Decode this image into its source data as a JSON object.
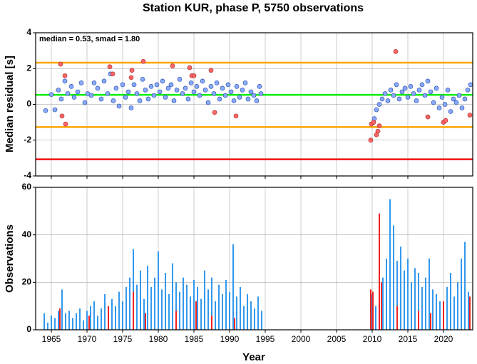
{
  "chart_data": [
    {
      "type": "scatter",
      "title": "Station KUR, phase P, 5750 observations",
      "ylabel": "Median residual [s]",
      "annotation": "median = 0.53, smad = 1.80",
      "xlim": [
        1962.8,
        2024.1
      ],
      "ylim": [
        -4,
        4
      ],
      "yticks": [
        -4,
        -2,
        0,
        2,
        4
      ],
      "xticks": [
        1965,
        1970,
        1975,
        1980,
        1985,
        1990,
        1995,
        2000,
        2005,
        2010,
        2015,
        2020
      ],
      "grid": true,
      "hlines": [
        {
          "value": 2.33,
          "color": "#ffa500"
        },
        {
          "value": 0.53,
          "color": "#00ee00"
        },
        {
          "value": -1.27,
          "color": "#ffa500"
        },
        {
          "value": -3.07,
          "color": "#ee1111"
        }
      ],
      "series": [
        {
          "color": "#88aaff",
          "edge": "#3355aa",
          "x": [
            1964.2,
            1965.0,
            1965.5,
            1966.0,
            1966.4,
            1966.9,
            1967.3,
            1967.8,
            1968.2,
            1968.7,
            1969.2,
            1969.7,
            1970.1,
            1970.6,
            1971.0,
            1971.5,
            1972.0,
            1972.4,
            1972.9,
            1973.3,
            1973.7,
            1974.1,
            1974.5,
            1975.0,
            1975.4,
            1975.8,
            1976.2,
            1976.6,
            1977.0,
            1977.4,
            1977.8,
            1978.2,
            1978.6,
            1979.0,
            1979.4,
            1979.8,
            1980.2,
            1980.6,
            1981.0,
            1981.4,
            1981.8,
            1982.2,
            1982.6,
            1983.0,
            1983.4,
            1983.8,
            1984.2,
            1984.6,
            1985.0,
            1985.4,
            1985.8,
            1986.2,
            1986.6,
            1987.0,
            1987.4,
            1987.8,
            1988.2,
            1988.6,
            1989.0,
            1989.4,
            1989.8,
            1990.2,
            1990.6,
            1991.0,
            1991.4,
            1991.8,
            1992.2,
            1992.6,
            1993.0,
            1993.4,
            1993.8,
            1994.2,
            1994.4,
            2010.3,
            2010.6,
            2011.0,
            2011.4,
            2011.8,
            2012.2,
            2012.6,
            2013.0,
            2013.4,
            2013.8,
            2014.2,
            2014.6,
            2015.0,
            2015.4,
            2015.8,
            2016.2,
            2016.6,
            2017.0,
            2017.4,
            2017.8,
            2018.2,
            2018.6,
            2019.0,
            2019.4,
            2019.8,
            2020.2,
            2020.6,
            2021.0,
            2021.4,
            2021.8,
            2022.2,
            2022.6,
            2023.0,
            2023.4,
            2023.8
          ],
          "values": [
            -0.35,
            0.55,
            -0.3,
            0.8,
            0.3,
            1.3,
            0.6,
            1.0,
            0.4,
            0.7,
            1.2,
            0.1,
            0.6,
            0.5,
            1.2,
            0.9,
            0.3,
            1.3,
            0.6,
            1.7,
            0.2,
            0.9,
            -0.1,
            1.1,
            0.4,
            0.7,
            -0.2,
            1.1,
            0.6,
            0.2,
            1.4,
            0.8,
            0.3,
            1.0,
            0.5,
            1.1,
            0.7,
            1.3,
            0.4,
            0.9,
            1.1,
            0.2,
            0.8,
            1.4,
            0.6,
            0.9,
            0.3,
            1.2,
            0.7,
            1.0,
            0.5,
            1.3,
            0.8,
            0.1,
            1.0,
            0.6,
            1.2,
            0.3,
            0.9,
            0.5,
            1.1,
            0.7,
            0.2,
            1.0,
            0.4,
            0.8,
            1.2,
            0.3,
            0.7,
            0.5,
            0.2,
            1.0,
            0.6,
            -0.8,
            -0.3,
            0.0,
            0.3,
            0.6,
            0.2,
            0.8,
            0.5,
            1.1,
            0.3,
            0.7,
            0.9,
            0.4,
            1.0,
            0.6,
            0.2,
            0.8,
            1.1,
            0.5,
            1.3,
            0.7,
            0.1,
            0.9,
            -0.2,
            0.4,
            0.0,
            0.8,
            -0.4,
            0.3,
            0.1,
            0.5,
            -0.2,
            0.3,
            0.8,
            1.1
          ]
        },
        {
          "color": "#ff6666",
          "edge": "#aa3333",
          "x": [
            1966.3,
            1966.5,
            1967.0,
            1966.9,
            1973.2,
            1973.6,
            1976.3,
            1976.2,
            1977.9,
            1982.0,
            1984.4,
            1984.7,
            1985.0,
            1987.4,
            1987.9,
            1990.9,
            2009.8,
            2009.9,
            2010.2,
            2010.6,
            2010.8,
            2011.0,
            2013.3,
            2017.8,
            2020.0,
            2020.3,
            2023.7
          ],
          "values": [
            2.25,
            -0.65,
            -1.1,
            1.6,
            2.1,
            1.7,
            1.9,
            1.5,
            2.4,
            2.15,
            2.05,
            1.6,
            1.6,
            1.9,
            -0.45,
            -0.65,
            -2.0,
            -1.1,
            -1.0,
            -1.7,
            -1.5,
            -1.2,
            2.95,
            -0.7,
            -1.0,
            -0.9,
            -0.6
          ]
        }
      ]
    },
    {
      "type": "bar",
      "xlabel": "Year",
      "ylabel": "Observations",
      "xlim": [
        1962.8,
        2024.1
      ],
      "ylim": [
        0,
        60
      ],
      "yticks": [
        0,
        20,
        40,
        60
      ],
      "xticks": [
        1965,
        1970,
        1975,
        1980,
        1985,
        1990,
        1995,
        2000,
        2005,
        2010,
        2015,
        2020
      ],
      "grid": true,
      "series": [
        {
          "color": "#3399ee",
          "x": [
            1964.0,
            1964.5,
            1965.0,
            1965.5,
            1966.0,
            1966.5,
            1967.0,
            1967.5,
            1968.0,
            1968.5,
            1969.0,
            1969.5,
            1970.0,
            1970.5,
            1971.0,
            1971.5,
            1972.0,
            1972.5,
            1973.0,
            1973.5,
            1974.0,
            1974.5,
            1975.0,
            1975.5,
            1976.0,
            1976.5,
            1977.0,
            1977.5,
            1978.0,
            1978.5,
            1979.0,
            1979.5,
            1980.0,
            1980.5,
            1981.0,
            1981.5,
            1982.0,
            1982.5,
            1983.0,
            1983.5,
            1984.0,
            1984.5,
            1985.0,
            1985.5,
            1986.0,
            1986.5,
            1987.0,
            1987.5,
            1988.0,
            1988.5,
            1989.0,
            1989.5,
            1990.0,
            1990.5,
            1991.0,
            1991.5,
            1992.0,
            1992.5,
            1993.0,
            1993.5,
            1994.0,
            1994.5,
            2010.0,
            2010.5,
            2011.0,
            2011.5,
            2012.0,
            2012.5,
            2013.0,
            2013.5,
            2014.0,
            2014.5,
            2015.0,
            2015.5,
            2016.0,
            2016.5,
            2017.0,
            2017.5,
            2018.0,
            2018.5,
            2019.0,
            2019.5,
            2020.0,
            2020.5,
            2021.0,
            2021.5,
            2022.0,
            2022.5,
            2023.0,
            2023.5
          ],
          "values": [
            7,
            3,
            6,
            5,
            8,
            17,
            7,
            8,
            5,
            7,
            9,
            4,
            8,
            10,
            12,
            6,
            9,
            15,
            7,
            13,
            10,
            16,
            12,
            18,
            22,
            34,
            19,
            25,
            13,
            27,
            18,
            22,
            33,
            17,
            24,
            15,
            28,
            20,
            16,
            22,
            19,
            14,
            21,
            18,
            13,
            25,
            17,
            22,
            12,
            19,
            15,
            21,
            16,
            36,
            14,
            18,
            10,
            15,
            12,
            9,
            14,
            8,
            15,
            10,
            38,
            22,
            30,
            55,
            44,
            29,
            35,
            25,
            30,
            20,
            26,
            24,
            18,
            22,
            30,
            17,
            15,
            12,
            10,
            18,
            24,
            14,
            20,
            30,
            37,
            16
          ]
        },
        {
          "color": "#ee2222",
          "x": [
            1966.2,
            1970.3,
            1973.0,
            1976.5,
            1978.2,
            1982.5,
            1985.3,
            1987.5,
            1990.7,
            2009.8,
            2010.1,
            2011.0,
            2011.3,
            2013.5,
            2016.5,
            2018.2,
            2020.0,
            2023.7
          ],
          "values": [
            9,
            6,
            10,
            16,
            7,
            8,
            12,
            6,
            5,
            17,
            16,
            49,
            20,
            10,
            8,
            7,
            12,
            14
          ]
        }
      ]
    }
  ]
}
